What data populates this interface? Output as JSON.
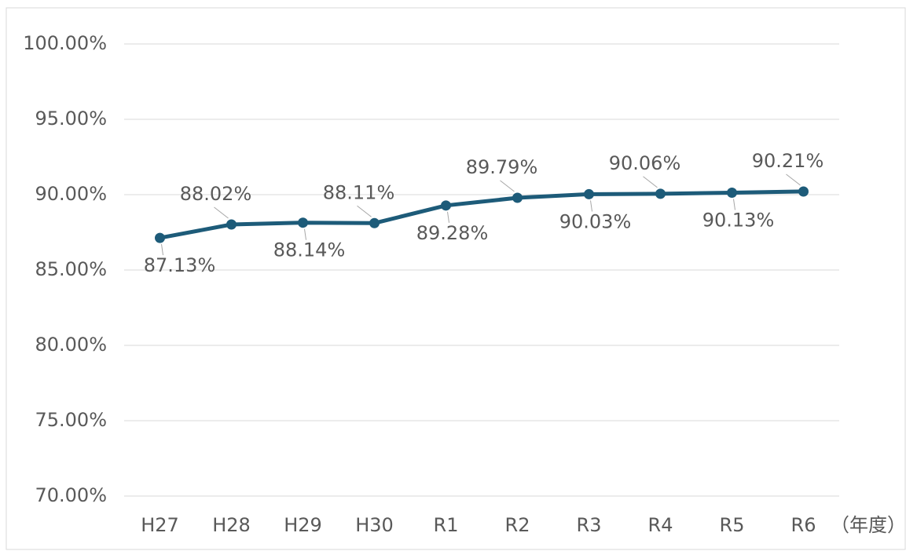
{
  "chart_data": {
    "type": "line",
    "categories": [
      "H27",
      "H28",
      "H29",
      "H30",
      "R1",
      "R2",
      "R3",
      "R4",
      "R5",
      "R6"
    ],
    "x_label": "（年度）",
    "series": [
      {
        "name": "",
        "color": "#1d5b79",
        "values": [
          87.13,
          88.02,
          88.14,
          88.11,
          89.28,
          89.79,
          90.03,
          90.06,
          90.13,
          90.21
        ],
        "value_labels": [
          "87.13%",
          "88.02%",
          "88.14%",
          "88.11%",
          "89.28%",
          "89.79%",
          "90.03%",
          "90.06%",
          "90.13%",
          "90.21%"
        ]
      }
    ],
    "ylim": [
      70,
      100
    ],
    "yticks": [
      {
        "value": 70,
        "label": "70.00%"
      },
      {
        "value": 75,
        "label": "75.00%"
      },
      {
        "value": 80,
        "label": "80.00%"
      },
      {
        "value": 85,
        "label": "85.00%"
      },
      {
        "value": 90,
        "label": "90.00%"
      },
      {
        "value": 95,
        "label": "95.00%"
      },
      {
        "value": 100,
        "label": "100.00%"
      }
    ],
    "grid": true
  }
}
